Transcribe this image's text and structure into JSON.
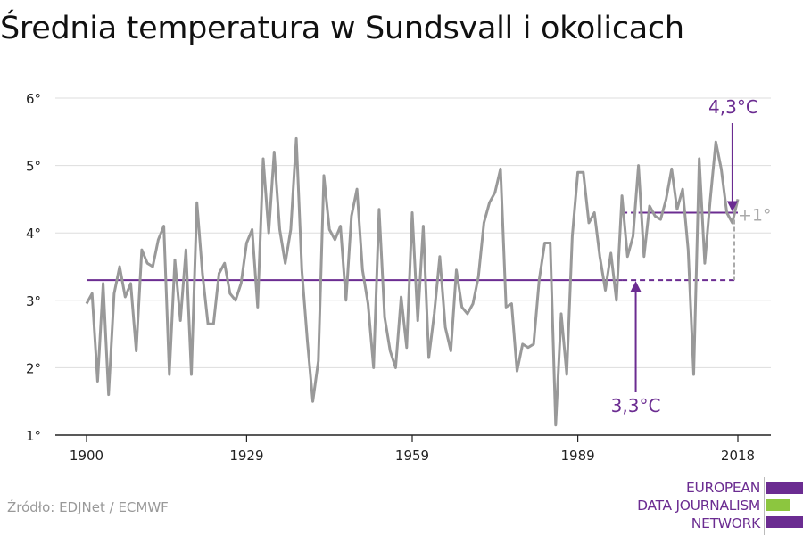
{
  "title": "Średnia temperatura w Sundsvall i okolicach",
  "source": "Źródło: EDJNet / ECMWF",
  "logo": {
    "lines": [
      "EUROPEAN",
      "DATA JOURNALISM",
      "NETWORK"
    ],
    "colors": [
      "#6b2c91",
      "#8cc63f",
      "#6b2c91"
    ]
  },
  "colors": {
    "series": "#999999",
    "accent": "#6b2c91",
    "diff": "#aaaaaa",
    "grid": "#dddddd",
    "axis": "#222222"
  },
  "annotations": {
    "recent_avg_label": "4,3°C",
    "baseline_label": "3,3°C",
    "difference_label": "+1°"
  },
  "chart_data": {
    "type": "line",
    "title": "Średnia temperatura w Sundsvall i okolicach",
    "xlabel": "",
    "ylabel": "",
    "xlim": [
      1900,
      2018
    ],
    "ylim": [
      1,
      6
    ],
    "grid": true,
    "x_ticks": [
      1900,
      1929,
      1959,
      1989,
      2018
    ],
    "x_tick_labels": [
      "1900",
      "1929",
      "1959",
      "1989",
      "2018"
    ],
    "y_ticks": [
      1,
      2,
      3,
      4,
      5,
      6
    ],
    "y_tick_labels": [
      "1°",
      "2°",
      "3°",
      "4°",
      "5°",
      "6°"
    ],
    "x": [
      1900,
      1901,
      1902,
      1903,
      1904,
      1905,
      1906,
      1907,
      1908,
      1909,
      1910,
      1911,
      1912,
      1913,
      1914,
      1915,
      1916,
      1917,
      1918,
      1919,
      1920,
      1921,
      1922,
      1923,
      1924,
      1925,
      1926,
      1927,
      1928,
      1929,
      1930,
      1931,
      1932,
      1933,
      1934,
      1935,
      1936,
      1937,
      1938,
      1939,
      1940,
      1941,
      1942,
      1943,
      1944,
      1945,
      1946,
      1947,
      1948,
      1949,
      1950,
      1951,
      1952,
      1953,
      1954,
      1955,
      1956,
      1957,
      1958,
      1959,
      1960,
      1961,
      1962,
      1963,
      1964,
      1965,
      1966,
      1967,
      1968,
      1969,
      1970,
      1971,
      1972,
      1973,
      1974,
      1975,
      1976,
      1977,
      1978,
      1979,
      1980,
      1981,
      1982,
      1983,
      1984,
      1985,
      1986,
      1987,
      1988,
      1989,
      1990,
      1991,
      1992,
      1993,
      1994,
      1995,
      1996,
      1997,
      1998,
      1999,
      2000,
      2001,
      2002,
      2003,
      2004,
      2005,
      2006,
      2007,
      2008,
      2009,
      2010,
      2011,
      2012,
      2013,
      2014,
      2015,
      2016,
      2017,
      2018
    ],
    "series": [
      {
        "values": [
          2.95,
          3.1,
          1.8,
          3.25,
          1.6,
          3.1,
          3.5,
          3.05,
          3.25,
          2.25,
          3.75,
          3.55,
          3.5,
          3.9,
          4.1,
          1.9,
          3.6,
          2.7,
          3.75,
          1.9,
          4.45,
          3.4,
          2.65,
          2.65,
          3.4,
          3.55,
          3.1,
          3.0,
          3.25,
          3.85,
          4.05,
          2.9,
          5.1,
          4.0,
          5.2,
          4.05,
          3.55,
          4.05,
          5.4,
          3.45,
          2.4,
          1.5,
          2.1,
          4.85,
          4.05,
          3.9,
          4.1,
          3.0,
          4.25,
          4.65,
          3.45,
          2.95,
          2.0,
          4.35,
          2.75,
          2.25,
          2.0,
          3.05,
          2.3,
          4.3,
          2.7,
          4.1,
          2.15,
          2.8,
          3.65,
          2.6,
          2.25,
          3.45,
          2.9,
          2.8,
          2.95,
          3.35,
          4.15,
          4.45,
          4.6,
          4.95,
          2.9,
          2.95,
          1.95,
          2.35,
          2.3,
          2.35,
          3.3,
          3.85,
          3.85,
          1.15,
          2.8,
          1.9,
          3.95,
          4.9,
          4.9,
          4.15,
          4.3,
          3.65,
          3.15,
          3.7,
          3.0,
          4.55,
          3.65,
          3.95,
          5.0,
          3.65,
          4.4,
          4.25,
          4.2,
          4.5,
          4.95,
          4.35,
          4.65,
          3.75,
          1.9,
          5.1,
          3.55,
          4.5,
          5.35,
          4.95,
          4.3,
          4.15,
          4.5
        ]
      }
    ],
    "reference_lines": [
      {
        "value": 3.3,
        "from": 1900,
        "to": 1997,
        "style": "solid"
      },
      {
        "value": 3.3,
        "from": 1997,
        "to": 2018,
        "style": "dashed"
      },
      {
        "value": 4.3,
        "from": 2000,
        "to": 2018,
        "style": "solid"
      },
      {
        "value": 4.3,
        "from": 1997,
        "to": 2000,
        "style": "dashed"
      }
    ]
  }
}
